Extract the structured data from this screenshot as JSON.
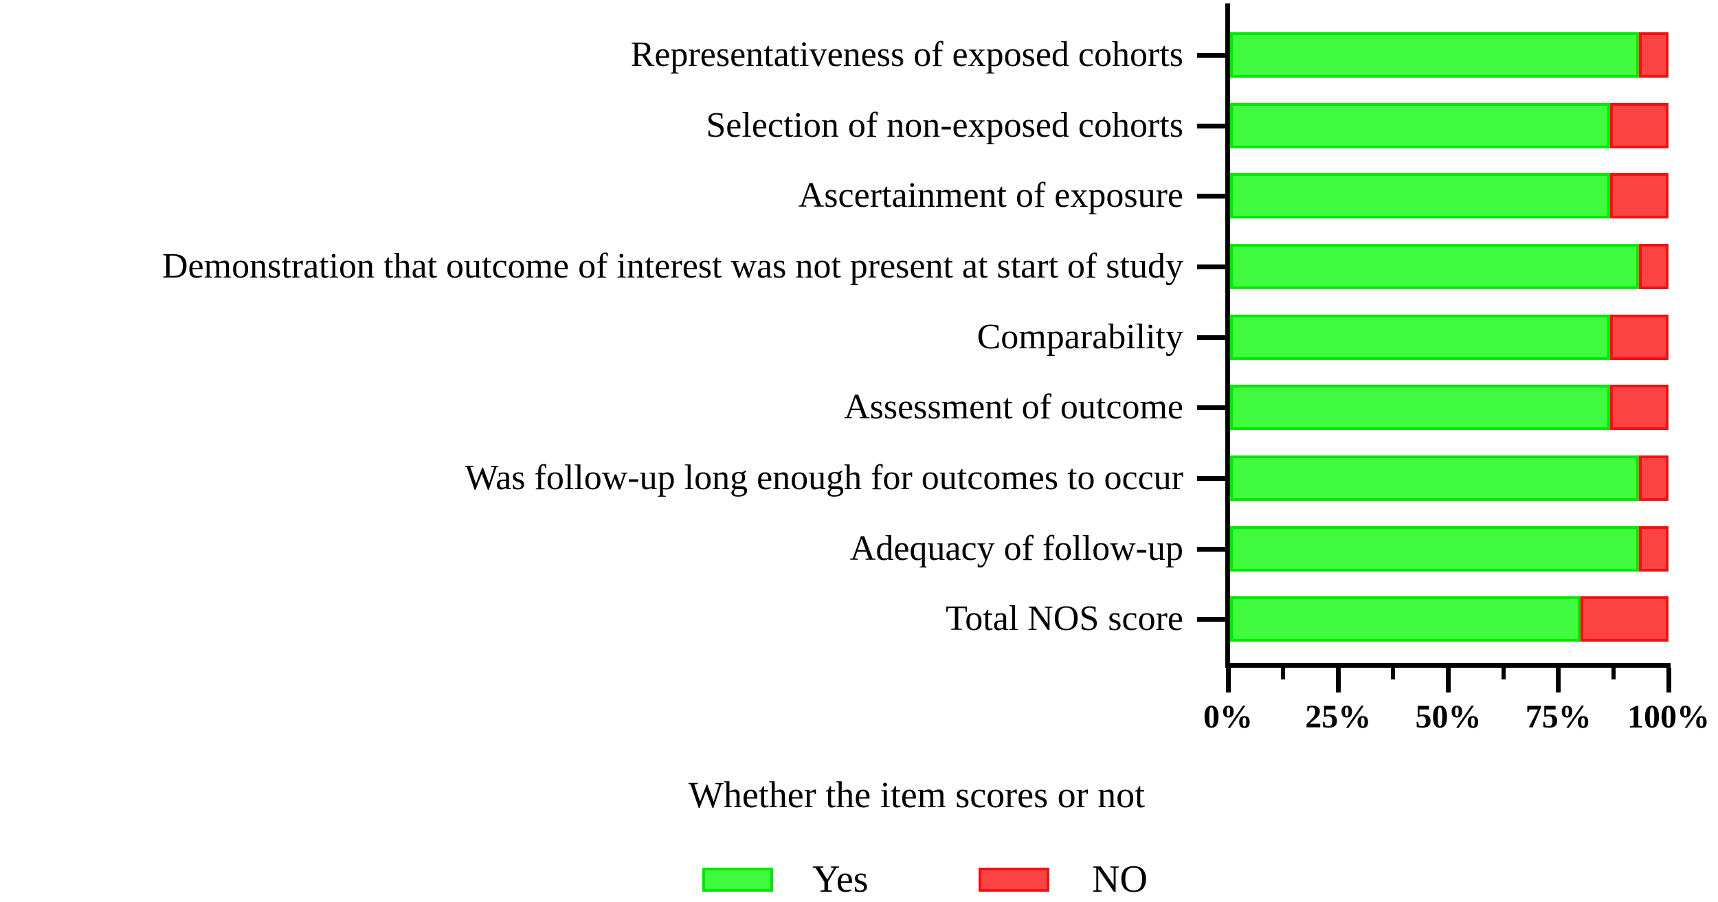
{
  "chart_data": {
    "type": "bar",
    "orientation": "horizontal",
    "stacked": true,
    "grid": false,
    "xlabel": "Whether the item scores or not",
    "x_ticks": [
      "0%",
      "25%",
      "50%",
      "75%",
      "100%"
    ],
    "x_tick_pcts": [
      0,
      25,
      50,
      75,
      100
    ],
    "x_minor_tick_pcts": [
      12.5,
      37.5,
      62.5,
      87.5
    ],
    "xlim": [
      0,
      100
    ],
    "categories": [
      "Representativeness of exposed cohorts",
      "Selection of non-exposed cohorts",
      "Ascertainment of exposure",
      "Demonstration that outcome of interest was not present at start of study",
      "Comparability",
      "Assessment of outcome",
      "Was follow-up long enough for outcomes to occur",
      "Adequacy of follow-up",
      "Total NOS score"
    ],
    "series": [
      {
        "name": "Yes",
        "color": "#40FB40",
        "border_color": "#00E800",
        "values": [
          93.3,
          86.7,
          86.7,
          93.3,
          86.7,
          86.7,
          93.3,
          93.3,
          80
        ]
      },
      {
        "name": "NO",
        "color": "#FB4343",
        "border_color": "#F01212",
        "values": [
          6.7,
          13.3,
          13.3,
          6.7,
          13.3,
          13.3,
          6.7,
          6.7,
          20
        ]
      }
    ],
    "legend": [
      {
        "label": "Yes",
        "color": "#40FB40"
      },
      {
        "label": "NO",
        "color": "#FB4343"
      }
    ],
    "legend_position": "bottom",
    "colors": {
      "axis": "#000000",
      "background": "#FFFFFF"
    }
  }
}
